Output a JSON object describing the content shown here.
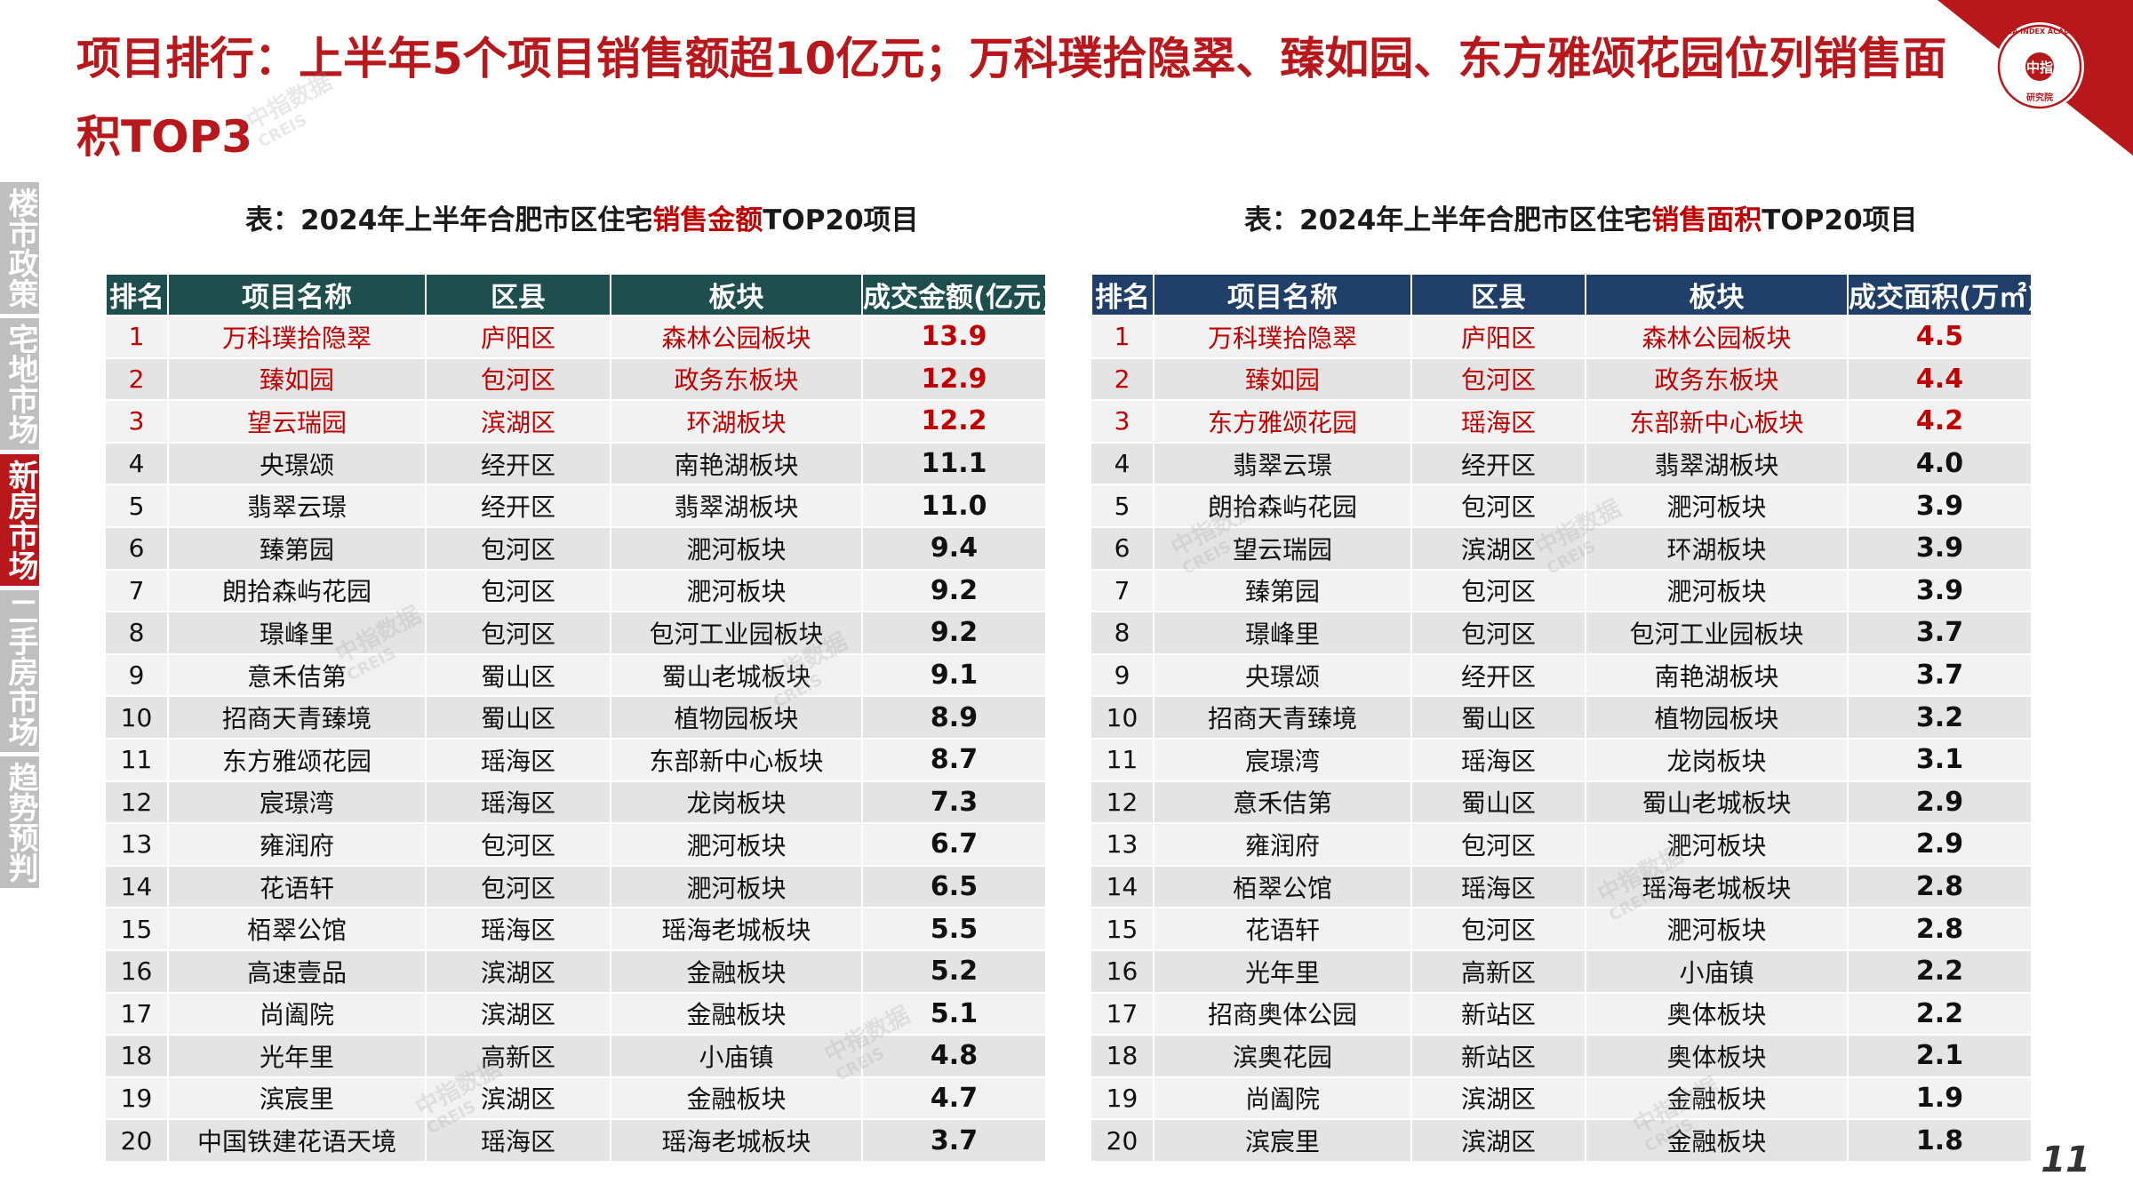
{
  "header": {
    "title": "项目排行：上半年5个项目销售额超10亿元；万科璞拾隐翠、臻如园、东方雅颂花园位列销售面积TOP3"
  },
  "logo": {
    "text": "CHINA INDEX ACADEMY",
    "seal_chars": "中指",
    "sub_text": "研究院",
    "color": "#b8171b"
  },
  "watermark": {
    "text": "中指数据",
    "sub": "CREIS"
  },
  "side_nav": [
    {
      "label": "楼市政策",
      "active": false
    },
    {
      "label": "宅地市场",
      "active": false
    },
    {
      "label": "新房市场",
      "active": true
    },
    {
      "label": "二手房市场",
      "active": false
    },
    {
      "label": "趋势预判",
      "active": false
    }
  ],
  "left_table": {
    "caption_prefix": "表：2024年上半年合肥市区住宅",
    "caption_highlight": "销售金额",
    "caption_suffix": "TOP20项目",
    "headers": [
      "排名",
      "项目名称",
      "区县",
      "板块",
      "成交金额(亿元)"
    ],
    "rows": [
      [
        "1",
        "万科璞拾隐翠",
        "庐阳区",
        "森林公园板块",
        "13.9"
      ],
      [
        "2",
        "臻如园",
        "包河区",
        "政务东板块",
        "12.9"
      ],
      [
        "3",
        "望云瑞园",
        "滨湖区",
        "环湖板块",
        "12.2"
      ],
      [
        "4",
        "央璟颂",
        "经开区",
        "南艳湖板块",
        "11.1"
      ],
      [
        "5",
        "翡翠云璟",
        "经开区",
        "翡翠湖板块",
        "11.0"
      ],
      [
        "6",
        "臻第园",
        "包河区",
        "淝河板块",
        "9.4"
      ],
      [
        "7",
        "朗拾森屿花园",
        "包河区",
        "淝河板块",
        "9.2"
      ],
      [
        "8",
        "璟峰里",
        "包河区",
        "包河工业园板块",
        "9.2"
      ],
      [
        "9",
        "意禾佶第",
        "蜀山区",
        "蜀山老城板块",
        "9.1"
      ],
      [
        "10",
        "招商天青臻境",
        "蜀山区",
        "植物园板块",
        "8.9"
      ],
      [
        "11",
        "东方雅颂花园",
        "瑶海区",
        "东部新中心板块",
        "8.7"
      ],
      [
        "12",
        "宸璟湾",
        "瑶海区",
        "龙岗板块",
        "7.3"
      ],
      [
        "13",
        "雍润府",
        "包河区",
        "淝河板块",
        "6.7"
      ],
      [
        "14",
        "花语轩",
        "包河区",
        "淝河板块",
        "6.5"
      ],
      [
        "15",
        "栢翠公馆",
        "瑶海区",
        "瑶海老城板块",
        "5.5"
      ],
      [
        "16",
        "高速壹品",
        "滨湖区",
        "金融板块",
        "5.2"
      ],
      [
        "17",
        "尚阖院",
        "滨湖区",
        "金融板块",
        "5.1"
      ],
      [
        "18",
        "光年里",
        "高新区",
        "小庙镇",
        "4.8"
      ],
      [
        "19",
        "滨宸里",
        "滨湖区",
        "金融板块",
        "4.7"
      ],
      [
        "20",
        "中国铁建花语天境",
        "瑶海区",
        "瑶海老城板块",
        "3.7"
      ]
    ]
  },
  "right_table": {
    "caption_prefix": "表：2024年上半年合肥市区住宅",
    "caption_highlight": "销售面积",
    "caption_suffix": "TOP20项目",
    "headers": [
      "排名",
      "项目名称",
      "区县",
      "板块",
      "成交面积(万㎡)"
    ],
    "rows": [
      [
        "1",
        "万科璞拾隐翠",
        "庐阳区",
        "森林公园板块",
        "4.5"
      ],
      [
        "2",
        "臻如园",
        "包河区",
        "政务东板块",
        "4.4"
      ],
      [
        "3",
        "东方雅颂花园",
        "瑶海区",
        "东部新中心板块",
        "4.2"
      ],
      [
        "4",
        "翡翠云璟",
        "经开区",
        "翡翠湖板块",
        "4.0"
      ],
      [
        "5",
        "朗拾森屿花园",
        "包河区",
        "淝河板块",
        "3.9"
      ],
      [
        "6",
        "望云瑞园",
        "滨湖区",
        "环湖板块",
        "3.9"
      ],
      [
        "7",
        "臻第园",
        "包河区",
        "淝河板块",
        "3.9"
      ],
      [
        "8",
        "璟峰里",
        "包河区",
        "包河工业园板块",
        "3.7"
      ],
      [
        "9",
        "央璟颂",
        "经开区",
        "南艳湖板块",
        "3.7"
      ],
      [
        "10",
        "招商天青臻境",
        "蜀山区",
        "植物园板块",
        "3.2"
      ],
      [
        "11",
        "宸璟湾",
        "瑶海区",
        "龙岗板块",
        "3.1"
      ],
      [
        "12",
        "意禾佶第",
        "蜀山区",
        "蜀山老城板块",
        "2.9"
      ],
      [
        "13",
        "雍润府",
        "包河区",
        "淝河板块",
        "2.9"
      ],
      [
        "14",
        "栢翠公馆",
        "瑶海区",
        "瑶海老城板块",
        "2.8"
      ],
      [
        "15",
        "花语轩",
        "包河区",
        "淝河板块",
        "2.8"
      ],
      [
        "16",
        "光年里",
        "高新区",
        "小庙镇",
        "2.2"
      ],
      [
        "17",
        "招商奥体公园",
        "新站区",
        "奥体板块",
        "2.2"
      ],
      [
        "18",
        "滨奥花园",
        "新站区",
        "奥体板块",
        "2.1"
      ],
      [
        "19",
        "尚阖院",
        "滨湖区",
        "金融板块",
        "1.9"
      ],
      [
        "20",
        "滨宸里",
        "滨湖区",
        "金融板块",
        "1.8"
      ]
    ]
  },
  "footer": {
    "page_number": "11"
  }
}
